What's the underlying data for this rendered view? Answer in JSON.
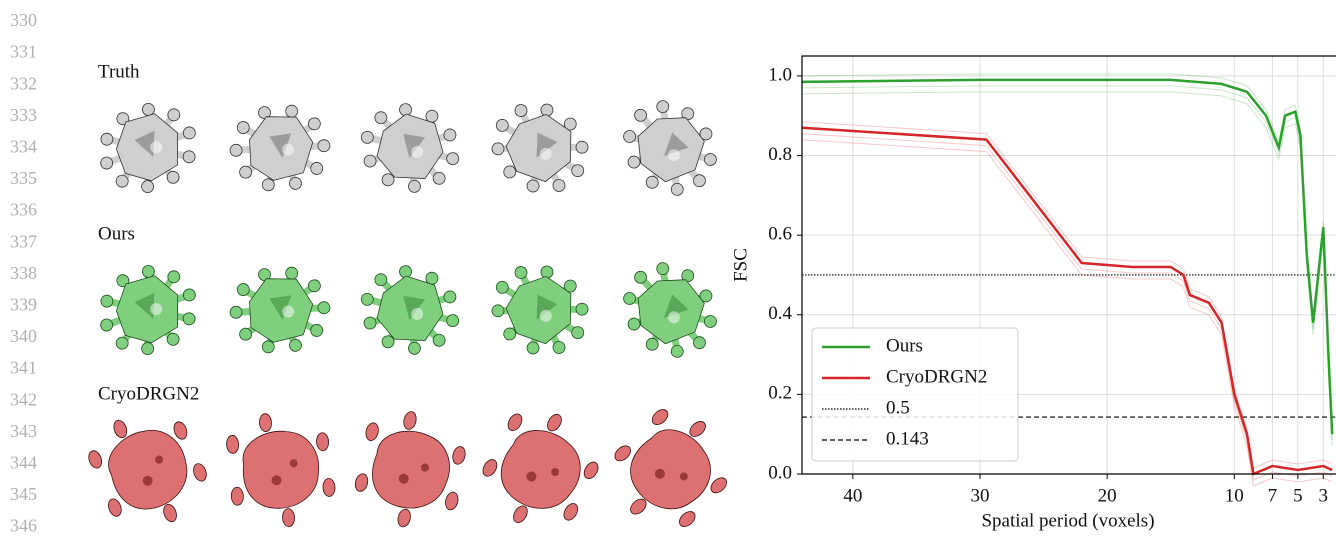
{
  "line_numbers": [
    "330",
    "331",
    "332",
    "333",
    "334",
    "335",
    "336",
    "337",
    "338",
    "339",
    "340",
    "341",
    "342",
    "343",
    "344",
    "345",
    "346"
  ],
  "panel_labels": [
    "Truth",
    "Ours",
    "CryoDRGN2"
  ],
  "chart_data": {
    "type": "line",
    "ylabel": "FSC",
    "xlabel": "Spatial period (voxels)",
    "xlim": [
      44,
      2
    ],
    "ylim": [
      0,
      1.05
    ],
    "xticks": [
      40,
      30,
      20,
      10,
      7,
      5,
      3
    ],
    "yticks": [
      {
        "value": 0,
        "label": "0.0"
      },
      0.2,
      0.4,
      0.6,
      0.8,
      {
        "value": 1,
        "label": "1.0"
      }
    ],
    "grid": true,
    "legend": "lower left",
    "series": [
      {
        "name": "Ours",
        "color": "#2ca02c",
        "x": [
          44,
          30,
          15,
          11,
          9,
          7.5,
          6.5,
          6,
          5.2,
          4.8,
          4.3,
          3.8,
          3.4,
          3,
          2.6,
          2.3
        ],
        "values": [
          0.985,
          0.99,
          0.99,
          0.98,
          0.96,
          0.9,
          0.82,
          0.9,
          0.91,
          0.85,
          0.55,
          0.38,
          0.5,
          0.62,
          0.3,
          0.1
        ]
      },
      {
        "name": "CryoDRGN2",
        "color": "#d62728",
        "x": [
          44,
          29.5,
          22,
          18,
          15,
          14,
          13.5,
          12,
          11,
          10,
          9,
          8.5,
          7,
          5,
          3,
          2.3
        ],
        "values": [
          0.87,
          0.84,
          0.53,
          0.52,
          0.52,
          0.5,
          0.45,
          0.43,
          0.38,
          0.2,
          0.1,
          0.0,
          0.02,
          0.01,
          0.02,
          0.01
        ]
      }
    ],
    "thresholds": [
      {
        "name": "0.5",
        "value": 0.5,
        "style": "dotted"
      },
      {
        "name": "0.143",
        "value": 0.143,
        "style": "dashed"
      }
    ]
  }
}
